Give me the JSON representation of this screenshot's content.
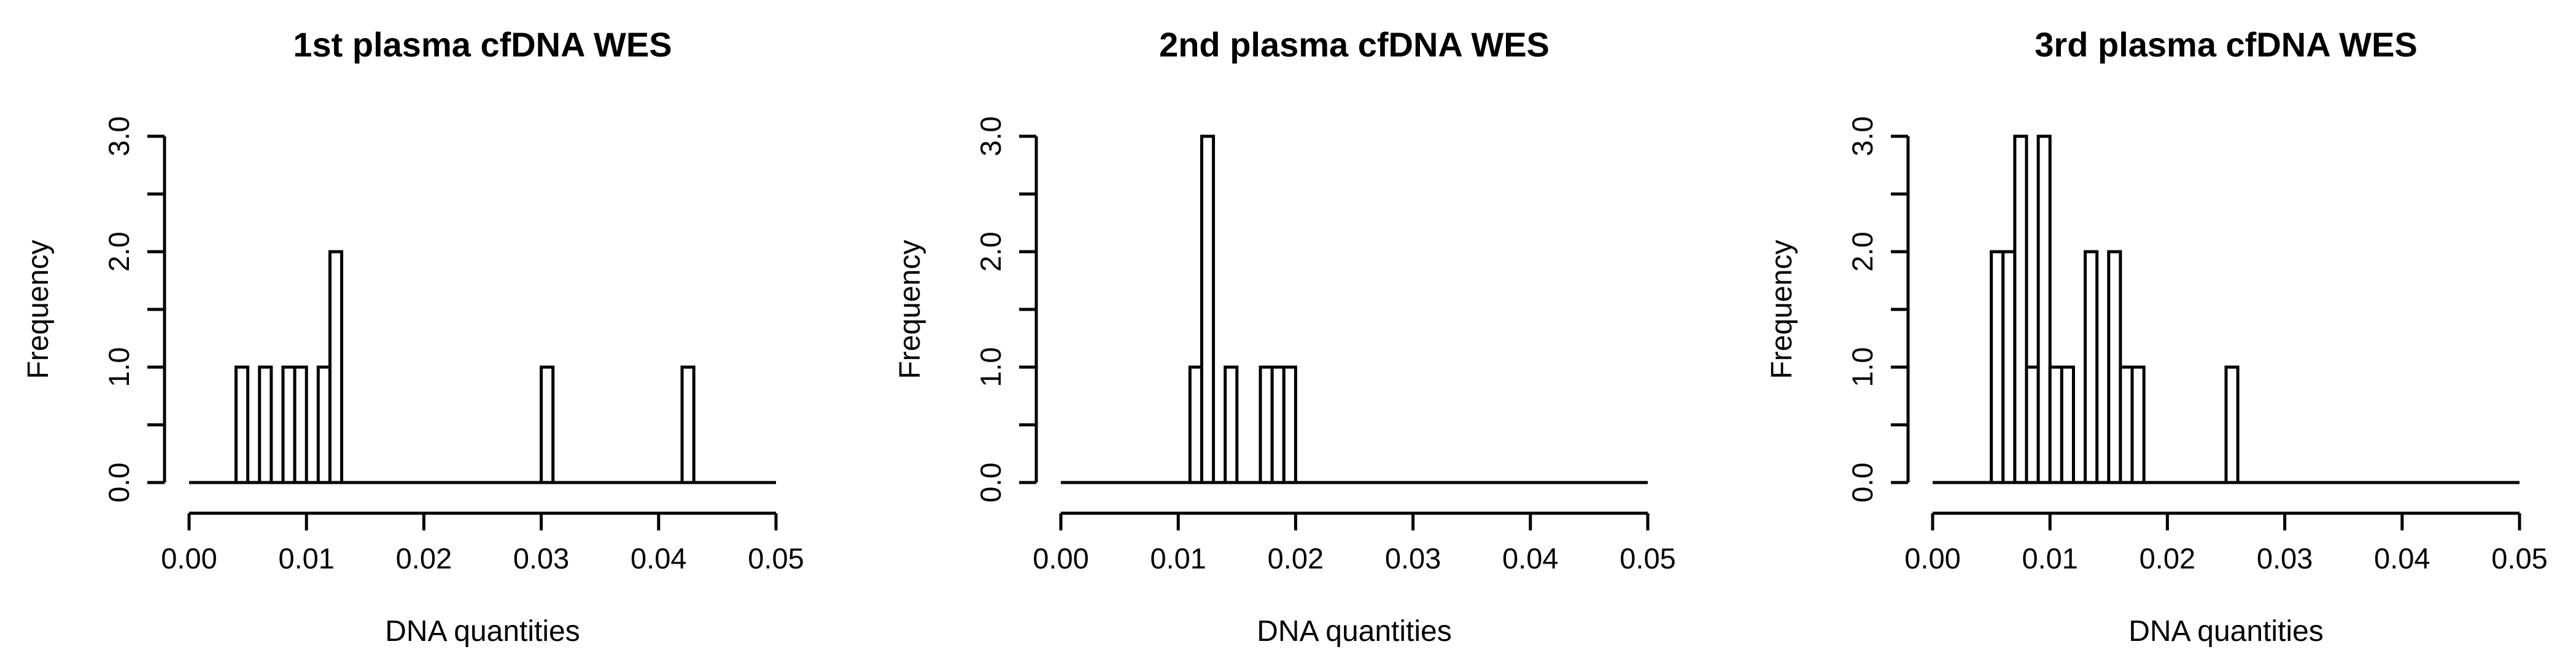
{
  "chart_data": [
    {
      "type": "bar",
      "title": "1st plasma cfDNA WES",
      "xlabel": "DNA quantities",
      "ylabel": "Frequency",
      "xlim": [
        0,
        0.05
      ],
      "ylim": [
        0,
        3
      ],
      "x_ticks": [
        "0.00",
        "0.01",
        "0.02",
        "0.03",
        "0.04",
        "0.05"
      ],
      "y_ticks": [
        "0.0",
        "1.0",
        "2.0",
        "3.0"
      ],
      "bin_width": 0.001,
      "bins": [
        {
          "x": 0.005,
          "count": 1
        },
        {
          "x": 0.007,
          "count": 1
        },
        {
          "x": 0.009,
          "count": 1
        },
        {
          "x": 0.01,
          "count": 1
        },
        {
          "x": 0.012,
          "count": 1
        },
        {
          "x": 0.013,
          "count": 2
        },
        {
          "x": 0.031,
          "count": 1
        },
        {
          "x": 0.043,
          "count": 1
        }
      ],
      "grid": false
    },
    {
      "type": "bar",
      "title": "2nd plasma cfDNA WES",
      "xlabel": "DNA quantities",
      "ylabel": "Frequency",
      "xlim": [
        0,
        0.05
      ],
      "ylim": [
        0,
        3
      ],
      "x_ticks": [
        "0.00",
        "0.01",
        "0.02",
        "0.03",
        "0.04",
        "0.05"
      ],
      "y_ticks": [
        "0.0",
        "1.0",
        "2.0",
        "3.0"
      ],
      "bin_width": 0.001,
      "bins": [
        {
          "x": 0.012,
          "count": 1
        },
        {
          "x": 0.013,
          "count": 3
        },
        {
          "x": 0.015,
          "count": 1
        },
        {
          "x": 0.018,
          "count": 1
        },
        {
          "x": 0.019,
          "count": 1
        },
        {
          "x": 0.02,
          "count": 1
        }
      ],
      "grid": false
    },
    {
      "type": "bar",
      "title": "3rd plasma cfDNA WES",
      "xlabel": "DNA quantities",
      "ylabel": "Frequency",
      "xlim": [
        0,
        0.05
      ],
      "ylim": [
        0,
        3
      ],
      "x_ticks": [
        "0.00",
        "0.01",
        "0.02",
        "0.03",
        "0.04",
        "0.05"
      ],
      "y_ticks": [
        "0.0",
        "1.0",
        "2.0",
        "3.0"
      ],
      "bin_width": 0.001,
      "bins": [
        {
          "x": 0.006,
          "count": 2
        },
        {
          "x": 0.007,
          "count": 2
        },
        {
          "x": 0.008,
          "count": 3
        },
        {
          "x": 0.009,
          "count": 1
        },
        {
          "x": 0.01,
          "count": 3
        },
        {
          "x": 0.011,
          "count": 1
        },
        {
          "x": 0.012,
          "count": 1
        },
        {
          "x": 0.014,
          "count": 2
        },
        {
          "x": 0.016,
          "count": 2
        },
        {
          "x": 0.017,
          "count": 1
        },
        {
          "x": 0.018,
          "count": 1
        },
        {
          "x": 0.026,
          "count": 1
        }
      ],
      "grid": false
    }
  ]
}
